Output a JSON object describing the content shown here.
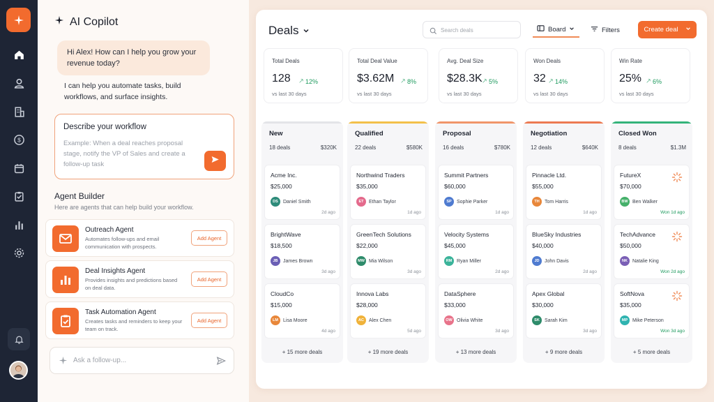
{
  "nav": {
    "items": [
      "home",
      "contacts",
      "companies",
      "deals",
      "calendar",
      "tasks",
      "reports",
      "settings"
    ]
  },
  "copilot": {
    "title": "AI Copilot",
    "greeting": "Hi Alex! How can I help you grow your revenue today?",
    "intro": "I can help you automate tasks, build workflows, and surface insights.",
    "workflow_label": "Describe your workflow",
    "workflow_placeholder": "Example: When a deal reaches proposal stage, notify the VP of Sales and create a follow-up task",
    "agent_builder_title": "Agent Builder",
    "agent_builder_sub": "Here are agents that can help build your workflow.",
    "agents": [
      {
        "name": "Outreach Agent",
        "desc": "Automates follow-ups and email communication with prospects.",
        "button": "Add Agent",
        "icon": "mail-icon"
      },
      {
        "name": "Deal Insights Agent",
        "desc": "Provides insights and predictions based on deal data.",
        "button": "Add Agent",
        "icon": "bar-chart-icon"
      },
      {
        "name": "Task Automation Agent",
        "desc": "Creates tasks and reminders to keep your team on track.",
        "button": "Add Agent",
        "icon": "clipboard-check-icon"
      }
    ],
    "ask_placeholder": "Ask a follow-up..."
  },
  "header": {
    "title": "Deals",
    "search_placeholder": "Search deals",
    "board_label": "Board",
    "filters_label": "Filters",
    "create_label": "Create deal"
  },
  "kpis": [
    {
      "label": "Total Deals",
      "value": "128",
      "delta": "12%",
      "sub": "vs last 30 days"
    },
    {
      "label": "Total Deal Value",
      "value": "$3.62M",
      "delta": "8%",
      "sub": "vs last 30 days"
    },
    {
      "label": "Avg. Deal Size",
      "value": "$28.3K",
      "delta": "5%",
      "sub": "vs last 30 days"
    },
    {
      "label": "Won Deals",
      "value": "32",
      "delta": "14%",
      "sub": "vs last 30 days"
    },
    {
      "label": "Win Rate",
      "value": "25%",
      "delta": "6%",
      "sub": "vs last 30 days"
    }
  ],
  "columns": [
    {
      "name": "New",
      "count": "18 deals",
      "total": "$320K",
      "color": "#e3e4e8",
      "more": "+ 15 more deals",
      "cards": [
        {
          "name": "Acme Inc.",
          "amount": "$25,000",
          "initials": "DS",
          "owner": "Daniel Smith",
          "time": "2d ago",
          "avatar": "#2e8b7a"
        },
        {
          "name": "BrightWave",
          "amount": "$18,500",
          "initials": "JB",
          "owner": "James Brown",
          "time": "3d ago",
          "avatar": "#6b5fb5"
        },
        {
          "name": "CloudCo",
          "amount": "$15,000",
          "initials": "LM",
          "owner": "Lisa Moore",
          "time": "4d ago",
          "avatar": "#e8873a"
        }
      ]
    },
    {
      "name": "Qualified",
      "count": "22 deals",
      "total": "$580K",
      "color": "#f3c04a",
      "more": "+ 19 more deals",
      "cards": [
        {
          "name": "Northwind Traders",
          "amount": "$35,000",
          "initials": "ET",
          "owner": "Ethan Taylor",
          "time": "1d ago",
          "avatar": "#e46a8c"
        },
        {
          "name": "GreenTech Solutions",
          "amount": "$22,000",
          "initials": "MW",
          "owner": "Mia Wilson",
          "time": "3d ago",
          "avatar": "#2e8b6a"
        },
        {
          "name": "Innova Labs",
          "amount": "$28,000",
          "initials": "AC",
          "owner": "Alex Chen",
          "time": "5d ago",
          "avatar": "#f0b23a"
        }
      ]
    },
    {
      "name": "Proposal",
      "count": "16 deals",
      "total": "$780K",
      "color": "#f0956a",
      "more": "+ 13 more deals",
      "cards": [
        {
          "name": "Summit Partners",
          "amount": "$60,000",
          "initials": "SP",
          "owner": "Sophie Parker",
          "time": "1d ago",
          "avatar": "#4f7bd0"
        },
        {
          "name": "Velocity Systems",
          "amount": "$45,000",
          "initials": "RM",
          "owner": "Ryan Miller",
          "time": "2d ago",
          "avatar": "#3bb39a"
        },
        {
          "name": "DataSphere",
          "amount": "$33,000",
          "initials": "OW",
          "owner": "Olivia White",
          "time": "3d ago",
          "avatar": "#e8738a"
        }
      ]
    },
    {
      "name": "Negotiation",
      "count": "12 deals",
      "total": "$640K",
      "color": "#ec7a52",
      "more": "+ 9 more deals",
      "cards": [
        {
          "name": "Pinnacle Ltd.",
          "amount": "$55,000",
          "initials": "TH",
          "owner": "Tom Harris",
          "time": "1d ago",
          "avatar": "#e8873a"
        },
        {
          "name": "BlueSky Industries",
          "amount": "$40,000",
          "initials": "JD",
          "owner": "John Davis",
          "time": "2d ago",
          "avatar": "#4f7bd0"
        },
        {
          "name": "Apex Global",
          "amount": "$30,000",
          "initials": "SK",
          "owner": "Sarah Kim",
          "time": "3d ago",
          "avatar": "#2e8b6a"
        }
      ]
    },
    {
      "name": "Closed Won",
      "count": "8 deals",
      "total": "$1.3M",
      "color": "#34b37a",
      "more": "+ 5 more deals",
      "cards": [
        {
          "name": "FutureX",
          "amount": "$70,000",
          "initials": "BW",
          "owner": "Ben Walker",
          "time": "Won 1d ago",
          "avatar": "#45b06a"
        },
        {
          "name": "TechAdvance",
          "amount": "$50,000",
          "initials": "NK",
          "owner": "Natalie King",
          "time": "Won 2d ago",
          "avatar": "#7a5fb5"
        },
        {
          "name": "SoftNova",
          "amount": "$35,000",
          "initials": "MP",
          "owner": "Mike Peterson",
          "time": "Won 3d ago",
          "avatar": "#2fb3b0"
        }
      ]
    }
  ],
  "colors": {
    "accent": "#f26b2e",
    "rail": "#1e2535",
    "positive": "#1e9a5e"
  }
}
